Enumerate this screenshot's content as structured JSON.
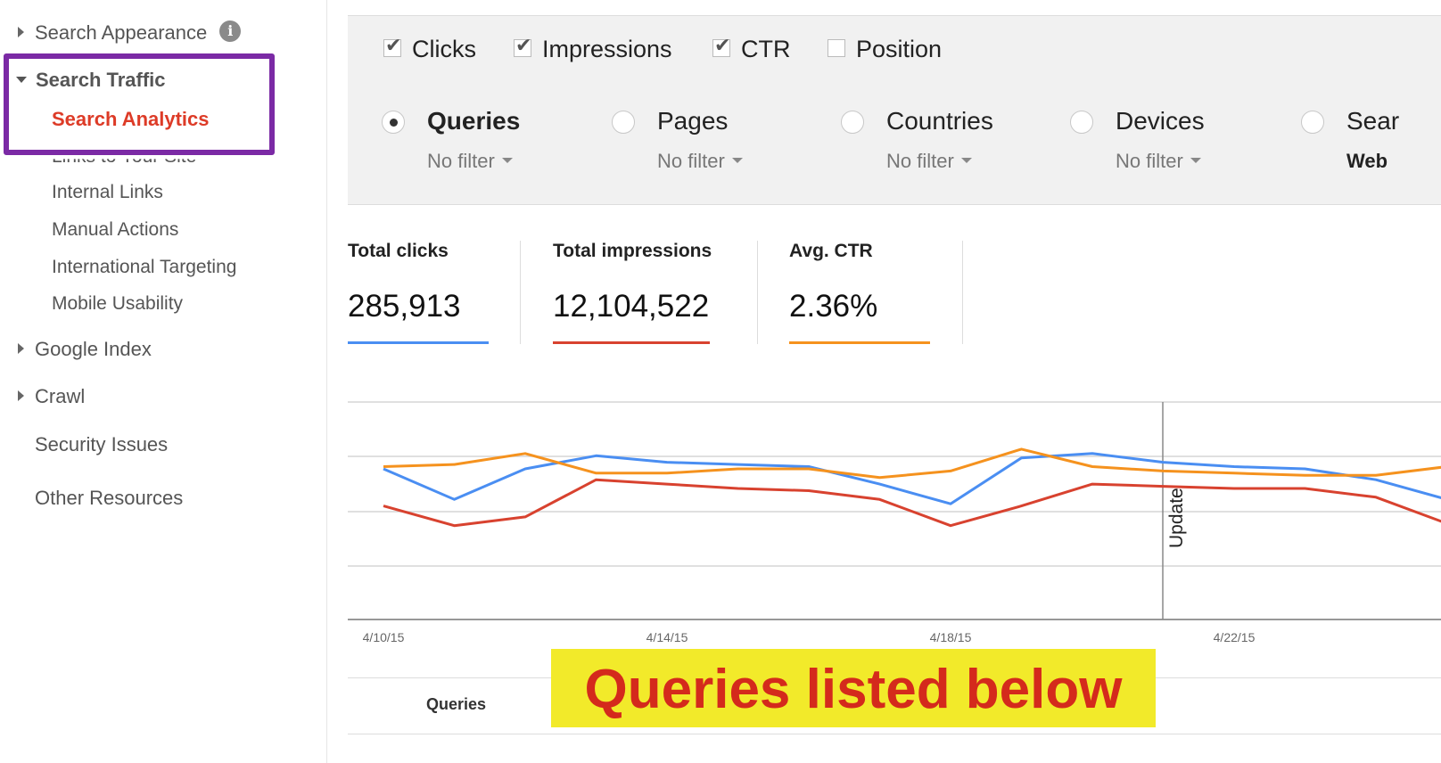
{
  "sidebar": {
    "search_appearance": "Search Appearance",
    "search_traffic": "Search Traffic",
    "search_analytics": "Search Analytics",
    "links_to_your_site": "Links to Your Site",
    "internal_links": "Internal Links",
    "manual_actions": "Manual Actions",
    "international_targeting": "International Targeting",
    "mobile_usability": "Mobile Usability",
    "google_index": "Google Index",
    "crawl": "Crawl",
    "security_issues": "Security Issues",
    "other_resources": "Other Resources",
    "info_glyph": "i"
  },
  "metrics": [
    {
      "label": "Clicks",
      "checked": true
    },
    {
      "label": "Impressions",
      "checked": true
    },
    {
      "label": "CTR",
      "checked": true
    },
    {
      "label": "Position",
      "checked": false
    }
  ],
  "groups": [
    {
      "label": "Queries",
      "filter": "No filter",
      "selected": true
    },
    {
      "label": "Pages",
      "filter": "No filter",
      "selected": false
    },
    {
      "label": "Countries",
      "filter": "No filter",
      "selected": false
    },
    {
      "label": "Devices",
      "filter": "No filter",
      "selected": false
    },
    {
      "label": "Sear",
      "filter": "Web",
      "selected": false
    }
  ],
  "totals": {
    "clicks_label": "Total clicks",
    "clicks_value": "285,913",
    "impressions_label": "Total impressions",
    "impressions_value": "12,104,522",
    "ctr_label": "Avg. CTR",
    "ctr_value": "2.36%"
  },
  "colors": {
    "clicks": "#4a8ef2",
    "impressions": "#d8422f",
    "ctr": "#f5921e",
    "highlight": "#7b2aa5",
    "active_nav": "#dd3b27"
  },
  "chart_data": {
    "type": "line",
    "x": [
      "4/10/15",
      "4/11/15",
      "4/12/15",
      "4/13/15",
      "4/14/15",
      "4/15/15",
      "4/16/15",
      "4/17/15",
      "4/18/15",
      "4/19/15",
      "4/20/15",
      "4/21/15",
      "4/22/15",
      "4/23/15",
      "4/24/15",
      "4/25/15"
    ],
    "tick_labels": [
      "4/10/15",
      "4/14/15",
      "4/18/15",
      "4/22/15"
    ],
    "series": [
      {
        "name": "Clicks",
        "color": "#4a8ef2",
        "values": [
          0.69,
          0.55,
          0.69,
          0.75,
          0.72,
          0.71,
          0.7,
          0.62,
          0.53,
          0.74,
          0.76,
          0.72,
          0.7,
          0.69,
          0.64,
          0.55
        ]
      },
      {
        "name": "Impressions",
        "color": "#d8422f",
        "values": [
          0.52,
          0.43,
          0.47,
          0.64,
          0.62,
          0.6,
          0.59,
          0.55,
          0.43,
          0.52,
          0.62,
          0.61,
          0.6,
          0.6,
          0.56,
          0.44
        ]
      },
      {
        "name": "CTR",
        "color": "#f5921e",
        "values": [
          0.7,
          0.71,
          0.76,
          0.67,
          0.67,
          0.69,
          0.69,
          0.65,
          0.68,
          0.78,
          0.7,
          0.68,
          0.67,
          0.66,
          0.66,
          0.7
        ]
      }
    ],
    "annotation": {
      "x": "4/22/15",
      "label": "Update"
    },
    "grid": true
  },
  "table": {
    "queries_col": "Queries"
  },
  "banner": {
    "text": "Queries listed below"
  }
}
